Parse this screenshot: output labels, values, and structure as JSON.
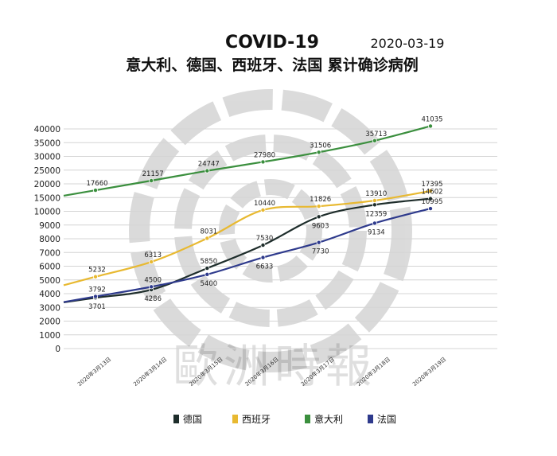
{
  "header": {
    "title": "COVID-19",
    "date": "2020-03-19",
    "subtitle": "意大利、德国、西班牙、法国 累计确诊病例"
  },
  "watermark": {
    "text": "歐洲時報"
  },
  "chart_data": {
    "type": "line",
    "title": "COVID-19",
    "subtitle": "意大利、德国、西班牙、法国 累计确诊病例",
    "categories": [
      "2020年3月13日",
      "2020年3月14日",
      "2020年3月15日",
      "2020年3月16日",
      "2020年3月17日",
      "2020年3月18日",
      "2020年3月19日"
    ],
    "ylim": [
      0,
      42000
    ],
    "yticks": [
      0,
      1000,
      2000,
      3000,
      4000,
      5000,
      6000,
      7000,
      8000,
      9000,
      10000,
      15000,
      20000,
      25000,
      30000,
      35000,
      40000
    ],
    "axis_note": "piecewise y axis: 1000 per step up to 10000, then 5000 per step",
    "grid": true,
    "legend_position": "bottom",
    "series": [
      {
        "name": "德国",
        "color": "#1e2d2b",
        "values": [
          3701,
          4286,
          5850,
          7530,
          9603,
          12359,
          14602
        ],
        "labels_below": [
          true,
          true,
          false,
          false,
          true,
          true,
          false
        ]
      },
      {
        "name": "西班牙",
        "color": "#e8b931",
        "values": [
          5232,
          6313,
          8031,
          10440,
          11826,
          13910,
          17395
        ],
        "labels_below": [
          false,
          false,
          false,
          false,
          false,
          false,
          false
        ]
      },
      {
        "name": "意大利",
        "color": "#3b8f3e",
        "values": [
          17660,
          21157,
          24747,
          27980,
          31506,
          35713,
          41035
        ],
        "labels_below": [
          false,
          false,
          false,
          false,
          false,
          false,
          false
        ]
      },
      {
        "name": "法国",
        "color": "#2e3a8c",
        "values": [
          3792,
          4500,
          5400,
          6633,
          7730,
          9134,
          10995
        ],
        "labels_below": [
          false,
          false,
          true,
          true,
          true,
          true,
          false
        ]
      }
    ]
  }
}
